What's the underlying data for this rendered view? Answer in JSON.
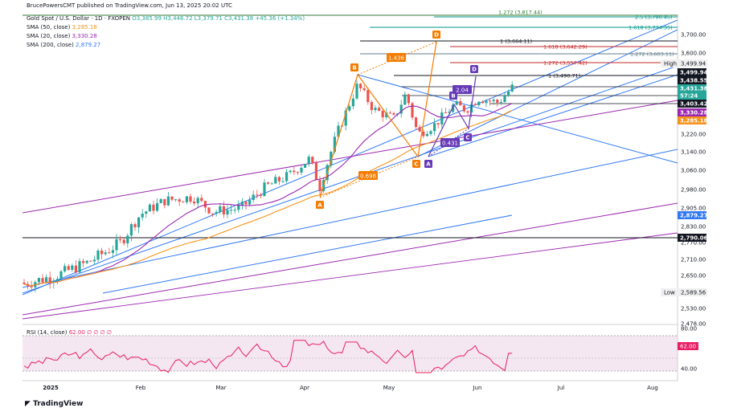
{
  "header": {
    "published": "BrucePowersCMT published on TradingView.com, Jun 13, 2025 20:02 UTC",
    "symbol": "Gold Spot / U.S. Dollar · 1D · FXOPEN",
    "ohlc": "O3,385.99 H3,446.72 L3,379.71 C3,431.38 +45.36 (+1.34%)",
    "sma50": "SMA (50, close)",
    "sma50_val": "3,285.18",
    "sma20": "SMA (20, close)",
    "sma20_val": "3,330.28",
    "sma200": "SMA (200, close)",
    "sma200_val": "2,879.27",
    "rsi": "RSI (14, close)",
    "rsi_val": "62.00",
    "rsi_extra": "∅ ∅ ∅ ∅",
    "logo": "TradingView"
  },
  "colors": {
    "up": "#26a69a",
    "down": "#ef5350",
    "trend": "#3179f5",
    "purple": "#9c27b0",
    "orange": "#f7931a",
    "harmonic": "#f57c00",
    "teal": "#00897b",
    "red": "#c62828",
    "dark": "#131722",
    "violet": "#673ab7",
    "rsi": "#e91e63"
  },
  "chart_data": {
    "type": "candlestick",
    "title": "Gold Spot / U.S. Dollar · 1D · FXOPEN",
    "x_ticks": [
      "2025",
      "Feb",
      "Mar",
      "Apr",
      "May",
      "Jun",
      "Jul",
      "Aug"
    ],
    "y_ticks": [
      2478,
      2530,
      2590,
      2650,
      2710,
      2770,
      2830,
      2905,
      2980,
      3060,
      3140,
      3220,
      3300,
      3380,
      3460,
      3530,
      3600,
      3700
    ],
    "y_tick_labels": [
      "2,478.00",
      "2,530.00",
      "2,590.00",
      "2,650.00",
      "2,710.00",
      "2,770.00",
      "2,830.00",
      "2,905.00",
      "2,980.00",
      "3,060.00",
      "3,140.00",
      "3,220.00",
      "3,300.00",
      "3,380.00",
      "3,460.00",
      "3,530.00",
      "3,600.00",
      "3,700.00"
    ],
    "price_tags": [
      {
        "label": "3,499.94",
        "style": "black"
      },
      {
        "label": "3,438.55",
        "style": "black"
      },
      {
        "label": "3,431.38",
        "style": "green"
      },
      {
        "label": "57:24",
        "style": "green"
      },
      {
        "label": "3,403.42",
        "style": "black"
      },
      {
        "label": "3,330.28",
        "style": "purple"
      },
      {
        "label": "3,285.18",
        "style": "orange"
      },
      {
        "label": "2,879.27",
        "style": "blue"
      },
      {
        "label": "2,790.06",
        "style": "black"
      }
    ],
    "high_label": "High",
    "high_value": "3,499.94",
    "low_label": "Low",
    "low_value": "2,589.56",
    "fib_levels": [
      {
        "label": "1.272 (3,817.44)",
        "color": "#2e7d32"
      },
      {
        "label": "2.5 (3,790.45)",
        "color": "#009688"
      },
      {
        "label": "1.618 (3,734.35)",
        "color": "#009688"
      },
      {
        "label": "1 (3,664.11)",
        "color": "#131722"
      },
      {
        "label": "1.618 (3,642.29)",
        "color": "#c62828"
      },
      {
        "label": "1.272 (3,603.11)",
        "color": "#607d8b"
      },
      {
        "label": "1.272 (3,557.42)",
        "color": "#c62828"
      },
      {
        "label": "1 (3,490.71)",
        "color": "#131722"
      }
    ],
    "pattern_points": [
      {
        "label": "A",
        "color": "#f57c00"
      },
      {
        "label": "B",
        "color": "#f57c00"
      },
      {
        "label": "C",
        "color": "#f57c00"
      },
      {
        "label": "D",
        "color": "#f57c00"
      },
      {
        "label": "A",
        "color": "#673ab7"
      },
      {
        "label": "B",
        "color": "#673ab7"
      },
      {
        "label": "C",
        "color": "#673ab7"
      },
      {
        "label": "D",
        "color": "#673ab7"
      }
    ],
    "ratio_labels": [
      {
        "label": "0.698",
        "color": "#f57c00"
      },
      {
        "label": "1.436",
        "color": "#f57c00"
      },
      {
        "label": "2.04",
        "color": "#673ab7"
      },
      {
        "label": "0.431",
        "color": "#673ab7"
      }
    ],
    "rsi": {
      "ticks": [
        "80.00",
        "40.00"
      ],
      "last": "62.00"
    }
  }
}
